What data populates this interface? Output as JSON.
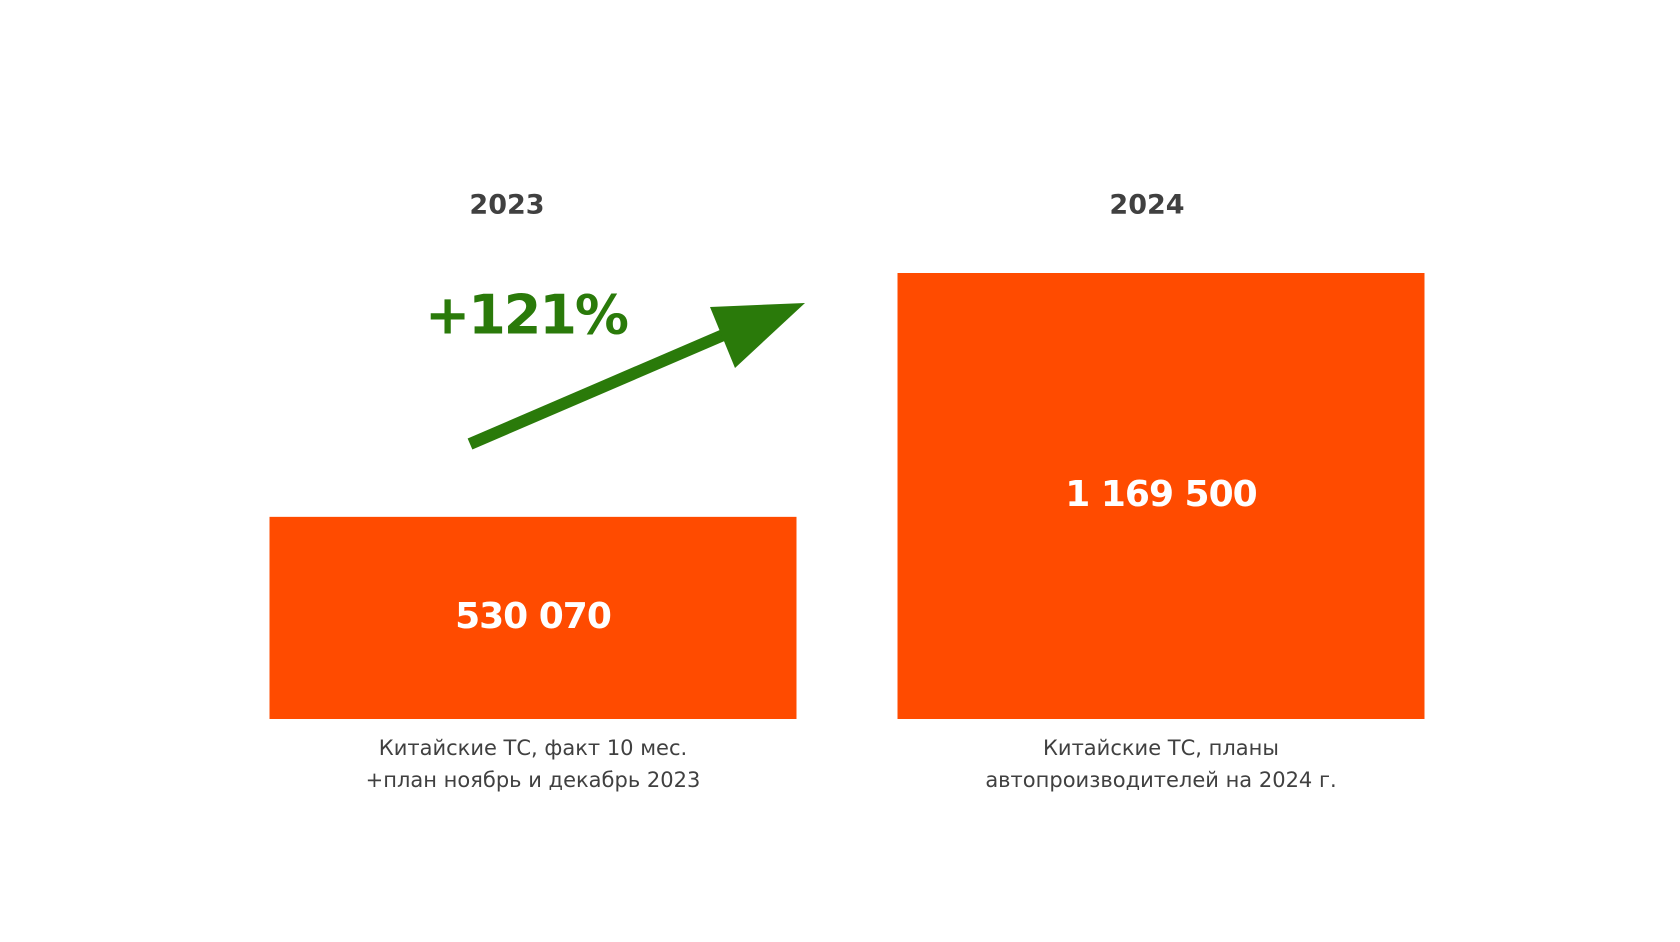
{
  "chart_data": {
    "type": "bar",
    "categories": [
      "2023",
      "2024"
    ],
    "values": [
      530070,
      1169500
    ],
    "value_labels": [
      "530 070",
      "1 169 500"
    ],
    "color": "#ff4b00",
    "annotation": "+121%",
    "captions": [
      [
        "Китайские ТС, факт 10 мес.",
        "+план ноябрь и декабрь 2023"
      ],
      [
        "Китайские ТС, планы",
        "автопроизводителей на 2024 г."
      ]
    ]
  }
}
